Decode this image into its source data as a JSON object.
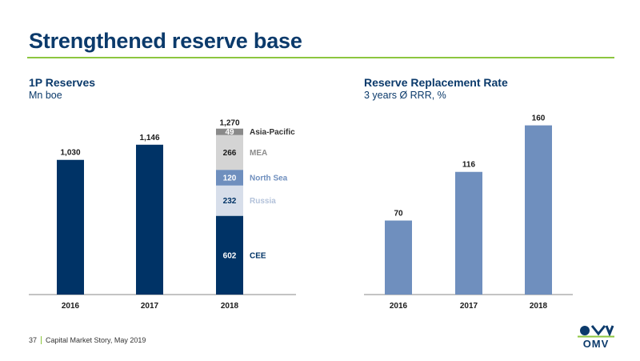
{
  "slide": {
    "title": "Strengthened reserve base",
    "footer_page": "37",
    "footer_text": "Capital Market Story, May 2019",
    "logo_text": "OMV",
    "colors": {
      "navy": "#0b3a6b",
      "accent_green": "#8cc63f",
      "rrr_blue": "#6f8fbe"
    }
  },
  "chart_data": [
    {
      "type": "bar",
      "title": "1P Reserves",
      "subtitle": "Mn boe",
      "categories": [
        "2016",
        "2017"
      ],
      "values": [
        1030,
        1146
      ],
      "value_labels": [
        "1,030",
        "1,146"
      ],
      "color": "#003366",
      "stacked": {
        "category": "2018",
        "total": 1270,
        "total_label": "1,270",
        "segments": [
          {
            "name": "CEE",
            "value": 602,
            "color": "#003366",
            "label_color": "#ffffff",
            "legend_color": "#003366"
          },
          {
            "name": "Russia",
            "value": 232,
            "color": "#d7deea",
            "label_color": "#003366",
            "legend_color": "#b3c2da"
          },
          {
            "name": "North Sea",
            "value": 120,
            "color": "#6f8fbe",
            "label_color": "#ffffff",
            "legend_color": "#6f8fbe"
          },
          {
            "name": "MEA",
            "value": 266,
            "color": "#d4d4d4",
            "label_color": "#1a1a1a",
            "legend_color": "#8c8c8c"
          },
          {
            "name": "Asia-Pacific",
            "value": 49,
            "color": "#8a8a8a",
            "label_color": "#ffffff",
            "legend_color": "#333333"
          }
        ]
      },
      "ylim": [
        0,
        1310
      ],
      "grid": false
    },
    {
      "type": "bar",
      "title": "Reserve Replacement Rate",
      "subtitle": "3 years Ø RRR, %",
      "categories": [
        "2016",
        "2017",
        "2018"
      ],
      "values": [
        70,
        116,
        160
      ],
      "value_labels": [
        "70",
        "116",
        "160"
      ],
      "color": "#6f8fbe",
      "ylim": [
        0,
        165
      ],
      "grid": false
    }
  ]
}
